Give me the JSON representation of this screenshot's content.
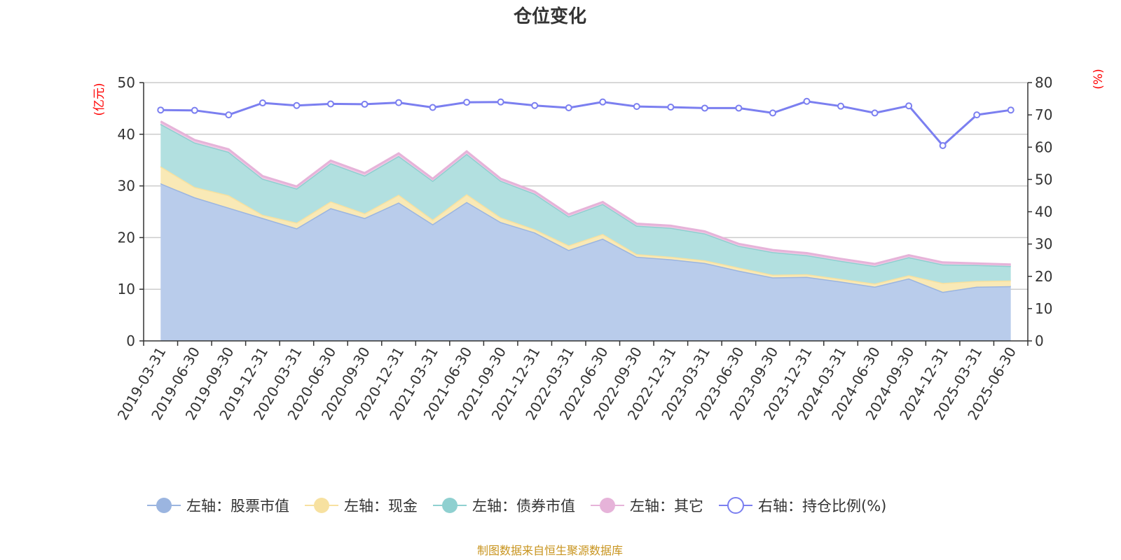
{
  "chart_data": {
    "type": "area",
    "title": "仓位变化",
    "left_axis_unit": "(亿元)",
    "right_axis_unit": "(%)",
    "left_ylim": [
      0,
      50
    ],
    "left_ticks": [
      0,
      10,
      20,
      30,
      40,
      50
    ],
    "right_ylim": [
      0,
      80
    ],
    "right_ticks": [
      0,
      10,
      20,
      30,
      40,
      50,
      60,
      70,
      80
    ],
    "grid": true,
    "legend_position": "bottom",
    "categories": [
      "2019-03-31",
      "2019-06-30",
      "2019-09-30",
      "2019-12-31",
      "2020-03-31",
      "2020-06-30",
      "2020-09-30",
      "2020-12-31",
      "2021-03-31",
      "2021-06-30",
      "2021-09-30",
      "2021-12-31",
      "2022-03-31",
      "2022-06-30",
      "2022-09-30",
      "2022-12-31",
      "2023-03-31",
      "2023-06-30",
      "2023-09-30",
      "2023-12-31",
      "2024-03-31",
      "2024-06-30",
      "2024-09-30",
      "2024-12-31",
      "2025-03-31",
      "2025-06-30"
    ],
    "series": [
      {
        "name": "左轴：股票市值",
        "axis": "left",
        "kind": "stacked-area",
        "color": "#9bb5e0",
        "fill": "#b9cceb",
        "values": [
          30.5,
          27.8,
          25.8,
          23.8,
          21.8,
          25.7,
          23.8,
          26.8,
          22.6,
          26.9,
          23.0,
          21.0,
          17.6,
          19.8,
          16.3,
          15.8,
          15.1,
          13.6,
          12.3,
          12.4,
          11.5,
          10.5,
          12.1,
          9.5,
          10.5,
          10.6
        ]
      },
      {
        "name": "左轴：现金",
        "axis": "left",
        "kind": "stacked-area",
        "color": "#f7e1a0",
        "fill": "#f9e9b6",
        "values": [
          3.3,
          2.0,
          2.4,
          0.6,
          1.1,
          1.3,
          0.9,
          1.5,
          0.9,
          1.5,
          0.9,
          0.6,
          0.9,
          0.9,
          0.5,
          0.5,
          0.5,
          0.6,
          0.5,
          0.5,
          0.5,
          0.6,
          0.6,
          1.7,
          1.1,
          1.1
        ]
      },
      {
        "name": "左轴：债券市值",
        "axis": "left",
        "kind": "stacked-area",
        "color": "#8fd0d0",
        "fill": "#b2e0e0",
        "values": [
          8.2,
          8.6,
          8.4,
          7.0,
          6.6,
          7.4,
          7.3,
          7.5,
          7.5,
          7.8,
          7.1,
          6.9,
          5.6,
          5.8,
          5.5,
          5.6,
          5.2,
          4.2,
          4.4,
          3.7,
          3.5,
          3.4,
          3.5,
          3.6,
          3.1,
          2.8
        ]
      },
      {
        "name": "左轴：其它",
        "axis": "left",
        "kind": "stacked-area",
        "color": "#e6b3d9",
        "fill": "#efc8e4",
        "values": [
          0.5,
          0.5,
          0.5,
          0.5,
          0.4,
          0.5,
          0.5,
          0.5,
          0.4,
          0.5,
          0.4,
          0.4,
          0.4,
          0.4,
          0.4,
          0.4,
          0.4,
          0.4,
          0.4,
          0.4,
          0.4,
          0.4,
          0.4,
          0.4,
          0.3,
          0.3
        ]
      },
      {
        "name": "右轴：持仓比例(%)",
        "axis": "right",
        "kind": "line",
        "color": "#7b7ff0",
        "values": [
          71.5,
          71.4,
          70.0,
          73.7,
          72.9,
          73.4,
          73.3,
          73.8,
          72.3,
          73.9,
          74.0,
          72.9,
          72.2,
          74.0,
          72.6,
          72.4,
          72.1,
          72.1,
          70.6,
          74.2,
          72.7,
          70.6,
          72.8,
          60.5,
          70.0,
          71.5
        ]
      }
    ]
  },
  "source_note": "制图数据来自恒生聚源数据库"
}
